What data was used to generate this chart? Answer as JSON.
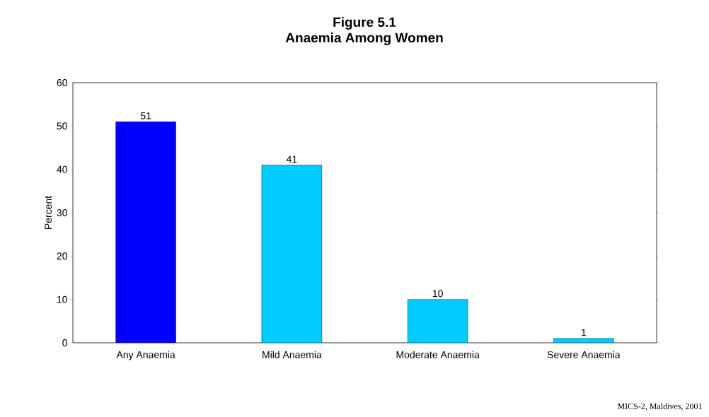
{
  "chart_data": {
    "type": "bar",
    "title": "Figure 5.1",
    "subtitle": "Anaemia Among Women",
    "ylabel": "Percent",
    "categories": [
      "Any Anaemia",
      "Mild Anaemia",
      "Moderate Anaemia",
      "Severe Anaemia"
    ],
    "values": [
      51,
      41,
      10,
      1
    ],
    "colors": [
      "#0000ff",
      "#00ccff",
      "#00ccff",
      "#00ccff"
    ],
    "ylim": [
      0,
      60
    ],
    "yticks": [
      0,
      10,
      20,
      30,
      40,
      50,
      60
    ],
    "data_labels": true,
    "grid": false,
    "annotations": [
      "MICS-2, Maldives, 2001"
    ]
  }
}
